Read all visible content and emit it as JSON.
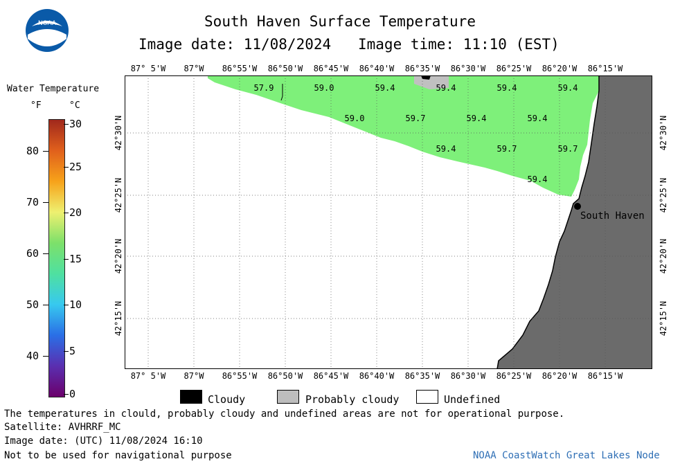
{
  "header": {
    "title": "South Haven Surface Temperature",
    "image_date": "Image date: 11/08/2024",
    "image_time": "Image time: 11:10 (EST)"
  },
  "colorbar": {
    "heading": "Water Temperature",
    "unit_f": "°F",
    "unit_c": "°C",
    "f_ticks": [
      "80",
      "70",
      "60",
      "50",
      "40"
    ],
    "c_ticks": [
      "30",
      "25",
      "20",
      "15",
      "10",
      "5",
      "0"
    ],
    "colors": [
      "#6b006b",
      "#5a2fb0",
      "#2a6fe6",
      "#37c9ef",
      "#4fe0a0",
      "#7de06a",
      "#eef070",
      "#f7a21a",
      "#e0601c",
      "#a0281c"
    ]
  },
  "map": {
    "lon_labels": [
      "87° 5'W",
      "87°W",
      "86°55'W",
      "86°50'W",
      "86°45'W",
      "86°40'W",
      "86°35'W",
      "86°30'W",
      "86°25'W",
      "86°20'W",
      "86°15'W"
    ],
    "lat_labels": [
      "42°30'N",
      "42°25'N",
      "42°20'N",
      "42°15'N"
    ],
    "place_label": "South Haven",
    "water_color": "#7ef07a",
    "land_color": "#6b6b6b",
    "temperature_values": [
      "57.9",
      "59.0",
      "59.4",
      "59.4",
      "59.4",
      "59.4",
      "59.0",
      "59.7",
      "59.4",
      "59.4",
      "59.4",
      "59.7",
      "59.7",
      "59.4"
    ]
  },
  "legend_key": {
    "cloudy": "Cloudy",
    "probably_cloudy": "Probably cloudy",
    "undefined": "Undefined"
  },
  "footer": {
    "disclaimer": "The temperatures in clould, probably cloudy and undefined areas are not for operational purpose.",
    "satellite": "Satellite: AVHRRF_MC",
    "utc_date": "Image date: (UTC) 11/08/2024  16:10",
    "nav_warning": "Not to be used for navigational purpose",
    "credit": "NOAA CoastWatch Great Lakes Node"
  }
}
